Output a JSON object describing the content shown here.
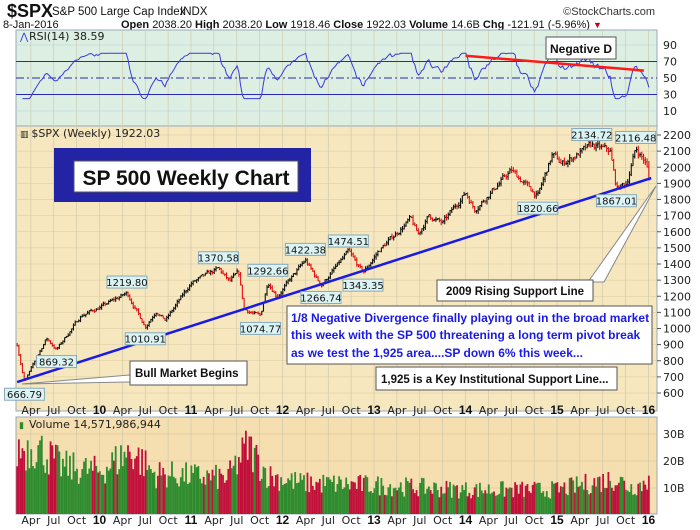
{
  "header": {
    "symbol": "$SPX",
    "name": "S&P 500 Large Cap Index",
    "exchange": "INDX",
    "credit": "©StockCharts.com",
    "date": "8-Jan-2016",
    "open_label": "Open",
    "open": "2038.20",
    "high_label": "High",
    "high": "2038.20",
    "low_label": "Low",
    "low": "1918.46",
    "close_label": "Close",
    "close": "1922.03",
    "volume_label": "Volume",
    "volume": "14.6B",
    "chg_label": "Chg",
    "chg": "-121.91 (-5.96%)",
    "down_arrow": "▼"
  },
  "colors": {
    "price_bg": "#f6e7be",
    "rsi_bg": "#dcefe2",
    "volume_bg": "#f5deb0",
    "up": "#111111",
    "down": "#e01010",
    "support_line": "#1a1ae6",
    "rsi_line": "#3a3ae0",
    "divergence_line": "#ff1a1a",
    "vol_up": "#2e8b2e",
    "vol_down": "#c0103a"
  },
  "chart_data": [
    {
      "type": "line",
      "title": "RSI(14) 38.59",
      "indicator": "RSI(14)",
      "last_value": 38.59,
      "ylim": [
        0,
        100
      ],
      "y_ticks": [
        "90",
        "70",
        "50",
        "30",
        "10"
      ],
      "reference_lines": [
        70,
        50,
        30
      ],
      "annotation": "Negative D",
      "divergence_line": {
        "from": [
          2014.0,
          77
        ],
        "to": [
          2015.95,
          59
        ]
      }
    },
    {
      "type": "ohlc",
      "title": "$SPX (Weekly) 1922.03",
      "ylim": [
        560,
        2260
      ],
      "y_ticks": [
        "2200",
        "2100",
        "2000",
        "1900",
        "1800",
        "1700",
        "1600",
        "1500",
        "1400",
        "1300",
        "1200",
        "1100",
        "1000",
        "900",
        "800",
        "700",
        "600"
      ],
      "x_range": [
        2009.1,
        2016.03
      ],
      "x_ticks": [
        {
          "t": 2009.25,
          "label": "Apr"
        },
        {
          "t": 2009.5,
          "label": "Jul"
        },
        {
          "t": 2009.75,
          "label": "Oct"
        },
        {
          "t": 2010,
          "label": "10",
          "bold": true
        },
        {
          "t": 2010.25,
          "label": "Apr"
        },
        {
          "t": 2010.5,
          "label": "Jul"
        },
        {
          "t": 2010.75,
          "label": "Oct"
        },
        {
          "t": 2011,
          "label": "11",
          "bold": true
        },
        {
          "t": 2011.25,
          "label": "Apr"
        },
        {
          "t": 2011.5,
          "label": "Jul"
        },
        {
          "t": 2011.75,
          "label": "Oct"
        },
        {
          "t": 2012,
          "label": "12",
          "bold": true
        },
        {
          "t": 2012.25,
          "label": "Apr"
        },
        {
          "t": 2012.5,
          "label": "Jul"
        },
        {
          "t": 2012.75,
          "label": "Oct"
        },
        {
          "t": 2013,
          "label": "13",
          "bold": true
        },
        {
          "t": 2013.25,
          "label": "Apr"
        },
        {
          "t": 2013.5,
          "label": "Jul"
        },
        {
          "t": 2013.75,
          "label": "Oct"
        },
        {
          "t": 2014,
          "label": "14",
          "bold": true
        },
        {
          "t": 2014.25,
          "label": "Apr"
        },
        {
          "t": 2014.5,
          "label": "Jul"
        },
        {
          "t": 2014.75,
          "label": "Oct"
        },
        {
          "t": 2015,
          "label": "15",
          "bold": true
        },
        {
          "t": 2015.25,
          "label": "Apr"
        },
        {
          "t": 2015.5,
          "label": "Jul"
        },
        {
          "t": 2015.75,
          "label": "Oct"
        },
        {
          "t": 2016,
          "label": "16",
          "bold": true
        }
      ],
      "key_points": [
        [
          2009.1,
          900
        ],
        [
          2009.18,
          666.79
        ],
        [
          2009.42,
          940
        ],
        [
          2009.53,
          869.32
        ],
        [
          2009.8,
          1080
        ],
        [
          2010.0,
          1130
        ],
        [
          2010.3,
          1219.8
        ],
        [
          2010.5,
          1010.91
        ],
        [
          2010.62,
          1110
        ],
        [
          2010.72,
          1050
        ],
        [
          2011.0,
          1280
        ],
        [
          2011.3,
          1370.58
        ],
        [
          2011.42,
          1290
        ],
        [
          2011.52,
          1345
        ],
        [
          2011.58,
          1120
        ],
        [
          2011.76,
          1074.77
        ],
        [
          2011.84,
          1292.66
        ],
        [
          2011.94,
          1200
        ],
        [
          2012.25,
          1422.38
        ],
        [
          2012.42,
          1266.74
        ],
        [
          2012.72,
          1474.51
        ],
        [
          2012.88,
          1343.35
        ],
        [
          2013.05,
          1480
        ],
        [
          2013.4,
          1680
        ],
        [
          2013.48,
          1580
        ],
        [
          2013.6,
          1700
        ],
        [
          2013.75,
          1650
        ],
        [
          2014.0,
          1845
        ],
        [
          2014.1,
          1740
        ],
        [
          2014.5,
          1980
        ],
        [
          2014.79,
          1820.66
        ],
        [
          2014.95,
          2080
        ],
        [
          2015.05,
          2020
        ],
        [
          2015.38,
          2134.72
        ],
        [
          2015.58,
          2100
        ],
        [
          2015.65,
          1867.01
        ],
        [
          2015.76,
          1900
        ],
        [
          2015.86,
          2116.48
        ],
        [
          2015.96,
          2040
        ],
        [
          2016.02,
          1922.03
        ]
      ],
      "peak_labels": [
        {
          "t": 2009.18,
          "v": 666.79,
          "label": "666.79",
          "pos": "below"
        },
        {
          "t": 2009.53,
          "v": 869.32,
          "label": "869.32",
          "pos": "below"
        },
        {
          "t": 2010.3,
          "v": 1219.8,
          "label": "1219.80",
          "pos": "above"
        },
        {
          "t": 2010.5,
          "v": 1010.91,
          "label": "1010.91",
          "pos": "below"
        },
        {
          "t": 2011.3,
          "v": 1370.58,
          "label": "1370.58",
          "pos": "above"
        },
        {
          "t": 2011.76,
          "v": 1074.77,
          "label": "1074.77",
          "pos": "below"
        },
        {
          "t": 2011.84,
          "v": 1292.66,
          "label": "1292.66",
          "pos": "above"
        },
        {
          "t": 2012.25,
          "v": 1422.38,
          "label": "1422.38",
          "pos": "above"
        },
        {
          "t": 2012.42,
          "v": 1266.74,
          "label": "1266.74",
          "pos": "below"
        },
        {
          "t": 2012.72,
          "v": 1474.51,
          "label": "1474.51",
          "pos": "above"
        },
        {
          "t": 2012.88,
          "v": 1343.35,
          "label": "1343.35",
          "pos": "below"
        },
        {
          "t": 2014.79,
          "v": 1820.66,
          "label": "1820.66",
          "pos": "below"
        },
        {
          "t": 2015.38,
          "v": 2134.72,
          "label": "2134.72",
          "pos": "above"
        },
        {
          "t": 2015.65,
          "v": 1867.01,
          "label": "1867.01",
          "pos": "below"
        },
        {
          "t": 2015.86,
          "v": 2116.48,
          "label": "2116.48",
          "pos": "above"
        }
      ],
      "support_line": {
        "from": [
          2009.1,
          668
        ],
        "to": [
          2016.03,
          1933
        ]
      },
      "annotations": {
        "chart_title": "SP 500 Weekly Chart",
        "support_label": "2009 Rising Support Line",
        "comment_lines": [
          "1/8  Negative Divergence finally playing out in the broad market",
          "this week with the SP 500 threatening a long term pivot break",
          "as we test the 1,925 area....SP down 6% this week..."
        ],
        "key_support": "1,925 is a Key Institutional Support Line...",
        "bull_market": "Bull Market Begins"
      }
    },
    {
      "type": "bar",
      "title": "Volume 14,571,986,944",
      "ylim": [
        0,
        36
      ],
      "y_unit": "B",
      "y_ticks": [
        {
          "v": 30,
          "label": "30B"
        },
        {
          "v": 20,
          "label": "20B"
        },
        {
          "v": 10,
          "label": "10B"
        }
      ],
      "volume_envelope_billions": [
        [
          2009.1,
          28
        ],
        [
          2009.3,
          30
        ],
        [
          2009.6,
          21
        ],
        [
          2010.0,
          19
        ],
        [
          2010.35,
          28
        ],
        [
          2010.6,
          18
        ],
        [
          2011.0,
          17
        ],
        [
          2011.4,
          16
        ],
        [
          2011.62,
          30
        ],
        [
          2011.85,
          17
        ],
        [
          2012.2,
          14
        ],
        [
          2013.0,
          13
        ],
        [
          2014.0,
          11
        ],
        [
          2015.0,
          11
        ],
        [
          2015.65,
          16
        ],
        [
          2015.8,
          12
        ],
        [
          2016.02,
          14.57
        ]
      ]
    }
  ]
}
